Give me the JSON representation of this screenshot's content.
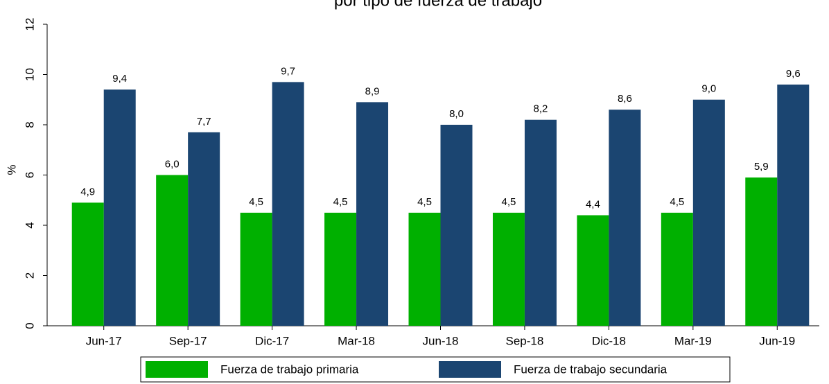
{
  "chart_data": {
    "type": "bar",
    "title": "por tipo de fuerza de trabajo",
    "y_label": "%",
    "categories": [
      "Jun-17",
      "Sep-17",
      "Dic-17",
      "Mar-18",
      "Jun-18",
      "Sep-18",
      "Dic-18",
      "Mar-19",
      "Jun-19"
    ],
    "series": [
      {
        "name": "Fuerza de trabajo primaria",
        "color": "#00b000",
        "values": [
          4.9,
          6.0,
          4.5,
          4.5,
          4.5,
          4.5,
          4.4,
          4.5,
          5.9
        ],
        "value_labels": [
          "4,9",
          "6,0",
          "4,5",
          "4,5",
          "4,5",
          "4,5",
          "4,4",
          "4,5",
          "5,9"
        ]
      },
      {
        "name": "Fuerza de trabajo secundaria",
        "color": "#1b4571",
        "values": [
          9.4,
          7.7,
          9.7,
          8.9,
          8.0,
          8.2,
          8.6,
          9.0,
          9.6
        ],
        "value_labels": [
          "9,4",
          "7,7",
          "9,7",
          "8,9",
          "8,0",
          "8,2",
          "8,6",
          "9,0",
          "9,6"
        ]
      }
    ],
    "ylim": [
      0,
      12
    ],
    "yticks": [
      0,
      2,
      4,
      6,
      8,
      10,
      12
    ],
    "grid": false,
    "legend": "bottom"
  }
}
